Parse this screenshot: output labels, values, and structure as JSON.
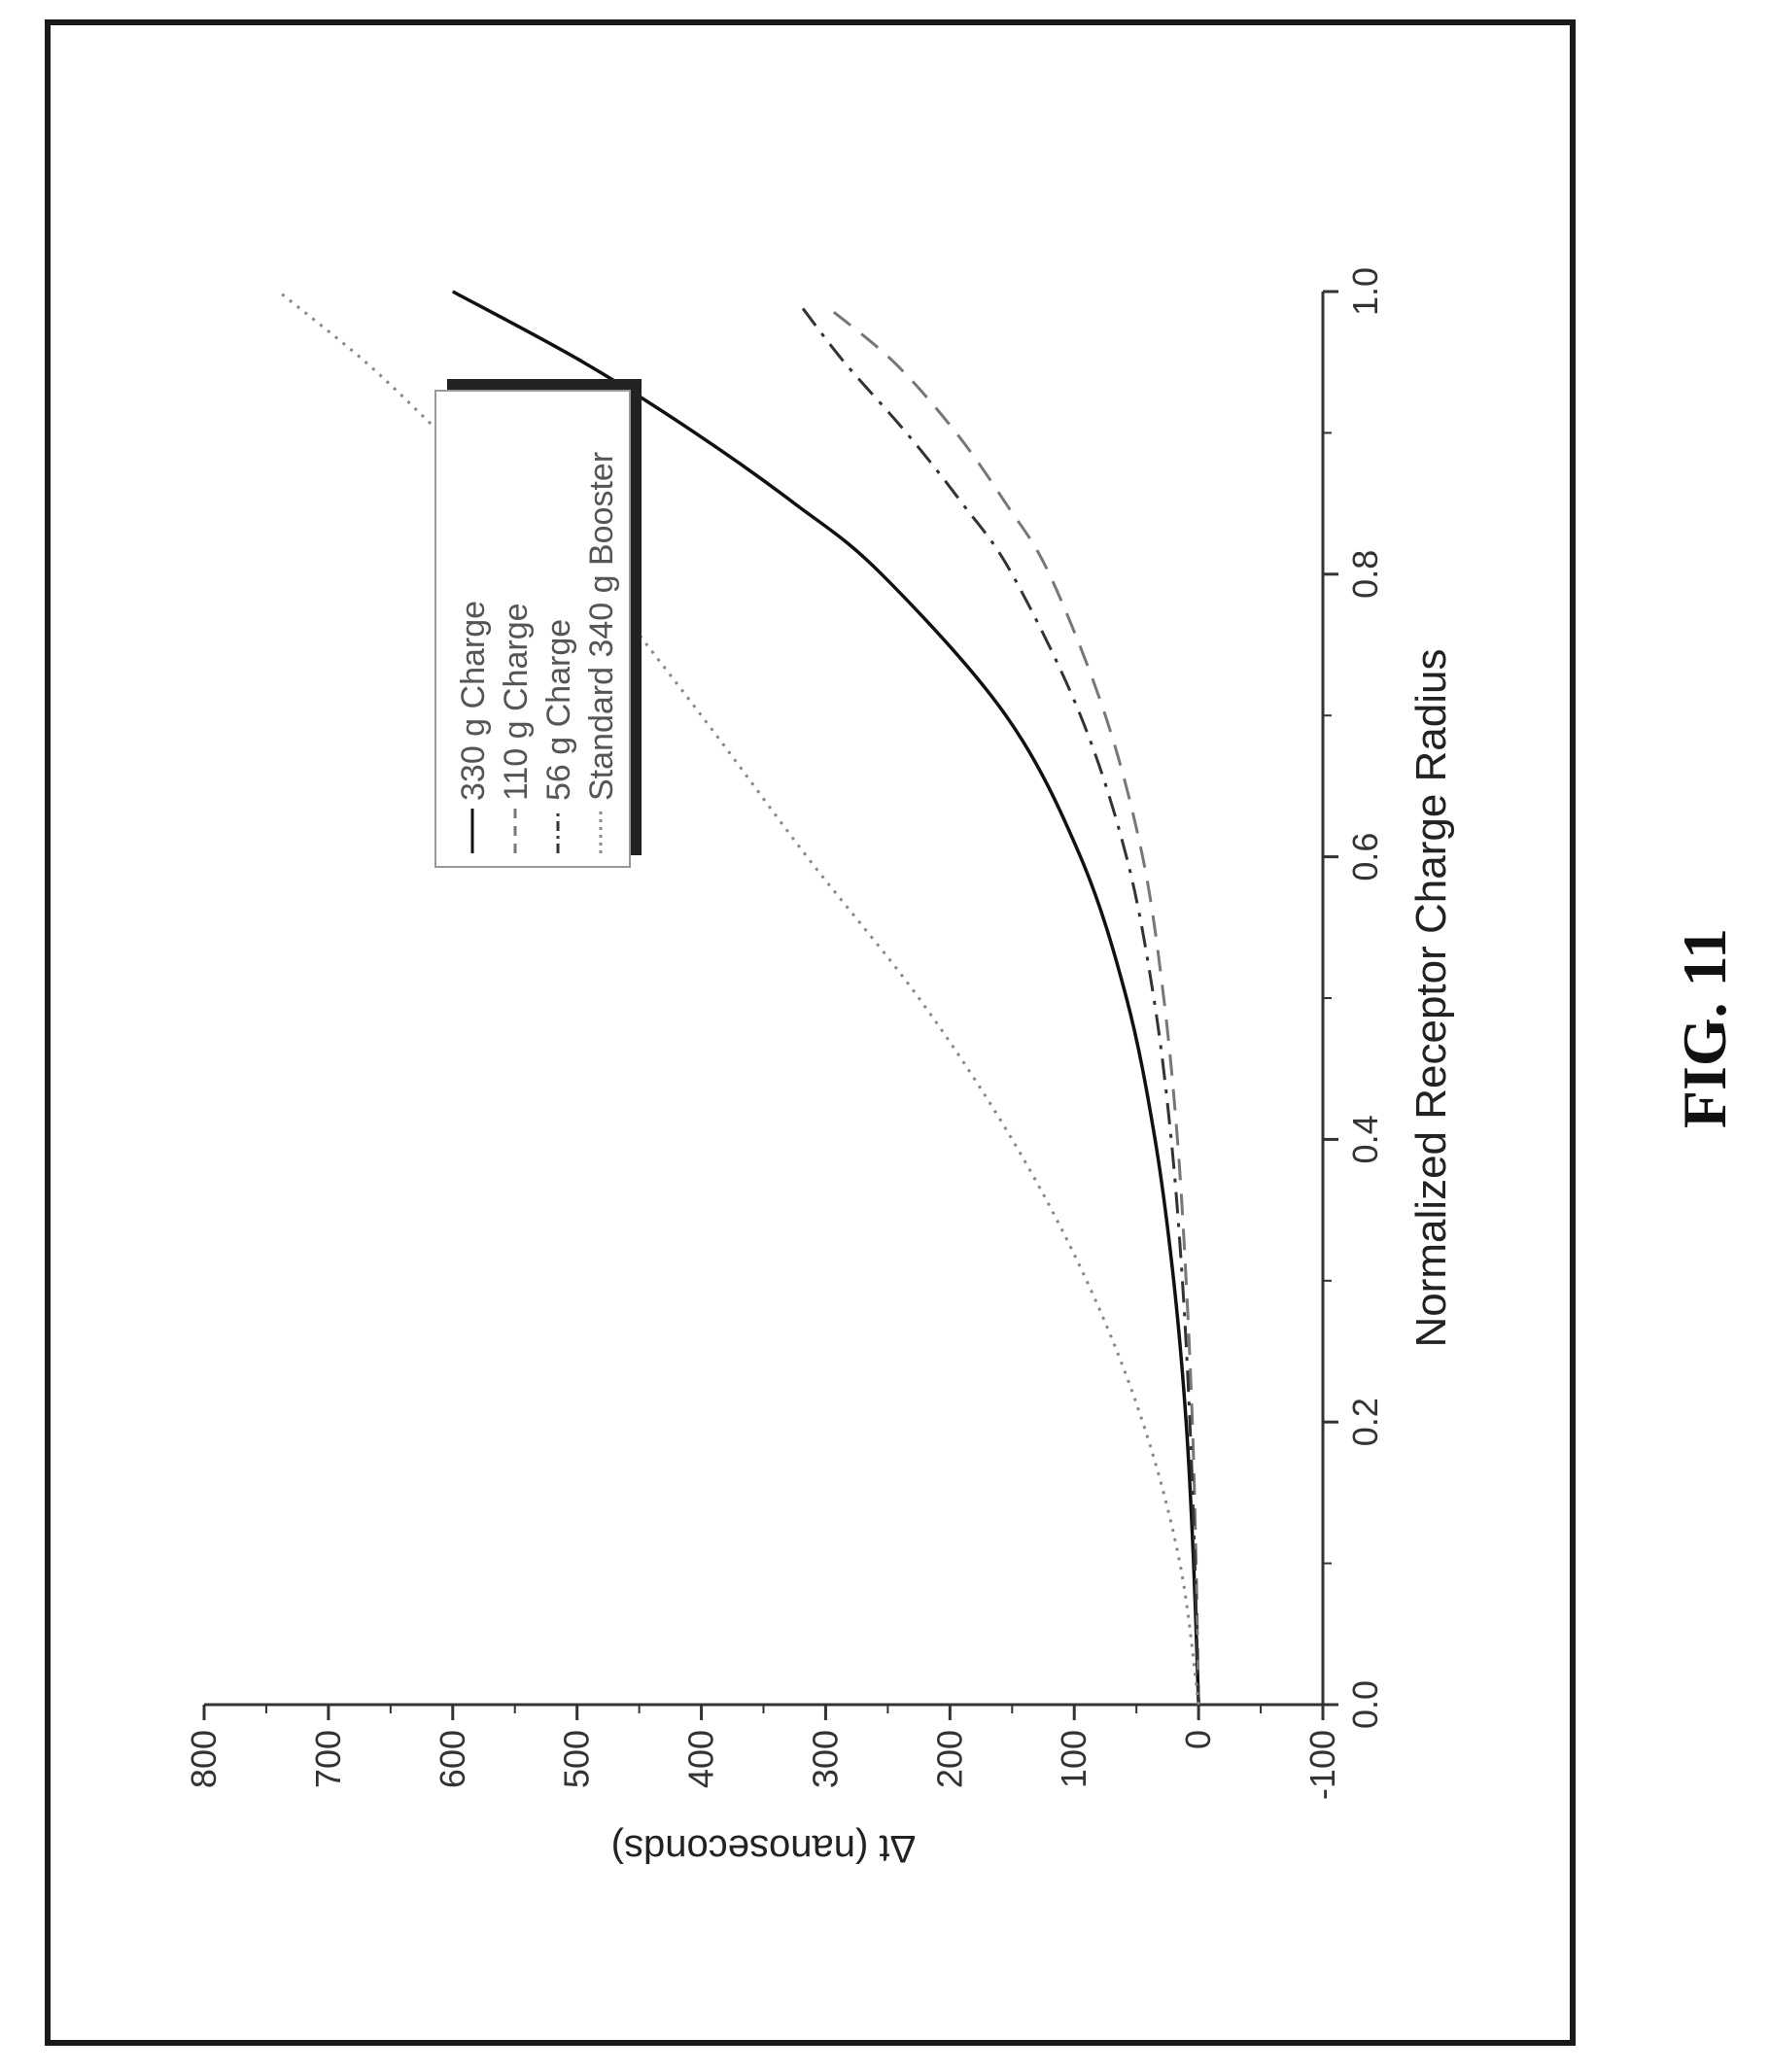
{
  "figure_label": "FIG. 11",
  "chart_data": {
    "type": "line",
    "xlabel": "Normalized Receptor Charge Radius",
    "ylabel": "Δt (nanoseconds)",
    "xlim": [
      0.0,
      1.0
    ],
    "ylim": [
      -100,
      800
    ],
    "x_ticks": [
      "0.0",
      "0.2",
      "0.4",
      "0.6",
      "0.8",
      "1.0"
    ],
    "y_ticks": [
      "-100",
      "0",
      "100",
      "200",
      "300",
      "400",
      "500",
      "600",
      "700",
      "800"
    ],
    "grid": false,
    "legend_position": "upper-left",
    "orientation": "rotated-90",
    "series": [
      {
        "name": "330 g Charge",
        "style": "solid",
        "color": "#111111",
        "x": [
          0.0,
          0.1,
          0.2,
          0.3,
          0.4,
          0.5,
          0.6,
          0.7,
          0.8,
          0.85,
          0.9,
          0.95,
          1.0
        ],
        "y": [
          0,
          4,
          10,
          20,
          35,
          58,
          95,
          155,
          255,
          325,
          405,
          495,
          600
        ]
      },
      {
        "name": "110 g Charge",
        "style": "dashed",
        "color": "#777777",
        "x": [
          0.0,
          0.1,
          0.2,
          0.3,
          0.4,
          0.5,
          0.6,
          0.7,
          0.8,
          0.85,
          0.9,
          0.95,
          0.99
        ],
        "y": [
          0,
          2,
          5,
          10,
          17,
          28,
          45,
          75,
          120,
          155,
          195,
          245,
          300
        ]
      },
      {
        "name": "56 g Charge",
        "style": "dash-dot",
        "color": "#333333",
        "x": [
          0.0,
          0.1,
          0.2,
          0.3,
          0.4,
          0.5,
          0.6,
          0.7,
          0.8,
          0.85,
          0.9,
          0.95,
          0.99
        ],
        "y": [
          0,
          3,
          7,
          13,
          22,
          36,
          58,
          95,
          150,
          190,
          235,
          285,
          320
        ]
      },
      {
        "name": "Standard 340 g Booster",
        "style": "dotted",
        "color": "#888888",
        "x": [
          0.0,
          0.1,
          0.2,
          0.3,
          0.4,
          0.5,
          0.6,
          0.7,
          0.8,
          0.85,
          0.9,
          0.95,
          1.0
        ],
        "y": [
          0,
          15,
          45,
          90,
          150,
          225,
          315,
          400,
          490,
          550,
          610,
          670,
          740
        ]
      }
    ]
  }
}
